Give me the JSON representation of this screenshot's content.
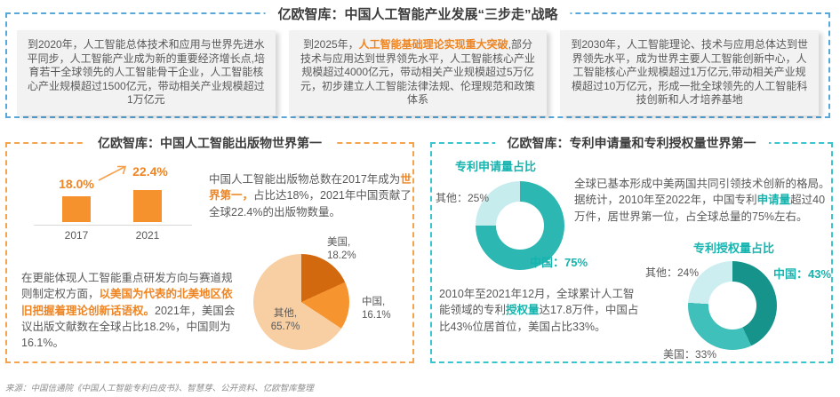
{
  "top_section": {
    "title": "亿欧智库：中国人工智能产业发展“三步走”战略",
    "boxes": [
      {
        "pre": "到2020年，人工智能总体技术和应用与世界先进水平同步，人工智能产业成为新的重要经济增长点,培育若干全球领先的人工智能骨干企业，人工智能核心产业规模超过1500亿元，带动相关产业规模超过1万亿元",
        "hl": "",
        "post": ""
      },
      {
        "pre": "到2025年，",
        "hl": "人工智能基础理论实现重大突破",
        "post": ",部分技术与应用达到世界领先水平，人工智能核心产业规模超过4000亿元，带动相关产业规模超过5万亿元，初步建立人工智能法律法规、伦理规范和政策体系"
      },
      {
        "pre": "到2030年，人工智能理论、技术与应用总体达到世界领先水平，成为世界主要人工智能创新中心，人工智能核心产业规模超过1万亿元,带动相关产业规模超过10万亿元，形成一批全球领先的人工智能科技创新和人才培养基地",
        "hl": "",
        "post": ""
      }
    ]
  },
  "left_section": {
    "title": "亿欧智库：中国人工智能出版物世界第一",
    "para1": {
      "pre": "中国人工智能出版物总数在2017年成为",
      "hl": "世界第一，",
      "post": "占比达18%，2021年中国贡献了全球22.4%的出版物数量。"
    },
    "para2": {
      "pre": "在更能体现人工智能重点研发方向与赛道规则制定权方面，",
      "hl": "以美国为代表的北美地区依旧把握着理论创新话语权。",
      "post": "2021年，美国会议出版文献数在全球占比18.2%，中国则为16.1%。"
    }
  },
  "right_section": {
    "title": "亿欧智库：专利申请量和专利授权量世界第一",
    "para1": {
      "pre": "全球已基本形成中美两国共同引领技术创新的格局。据统计，2010年至2022年，中国专利",
      "hl": "申请量",
      "post": "超过40万件，居世界第一位，占全球总量的75%左右。"
    },
    "para2": {
      "pre": "2010年至2021年12月，全球累计人工智能领域的专利",
      "hl": "授权量",
      "post": "达17.8万件，中国占比43%位居首位，美国占比33%。"
    }
  },
  "footer": {
    "source": "来源：中国信通院《中国人工智能专利白皮书》、智慧芽、公开资料、亿欧智库整理"
  },
  "colors": {
    "blue_dash": "#58A8DA",
    "orange_dash": "#F5A34C",
    "teal_dash": "#3AC4CE",
    "orange_accent": "#EF8522",
    "teal_accent": "#17B3AE"
  },
  "chart_data": [
    {
      "type": "bar",
      "title": "",
      "categories": [
        "2017",
        "2021"
      ],
      "values": [
        18.0,
        22.4
      ],
      "unit": "%",
      "value_labels": [
        "18.0%",
        "22.4%"
      ],
      "bar_color": "#F5922E",
      "annotation": "increase-arrow"
    },
    {
      "type": "pie",
      "title": "",
      "slices": [
        {
          "label": "美国",
          "value": 18.2,
          "color": "#D2690F",
          "label_text": "美国,\n18.2%"
        },
        {
          "label": "中国",
          "value": 16.1,
          "color": "#F6952F",
          "label_text": "中国,\n16.1%"
        },
        {
          "label": "其他",
          "value": 65.7,
          "color": "#F8CFA3",
          "label_text": "其他,\n65.7%"
        }
      ]
    },
    {
      "type": "pie",
      "donut": true,
      "title": "专利申请量占比",
      "slices": [
        {
          "label": "中国",
          "value": 75,
          "color": "#2CB7B3",
          "label_text": "中国：75%"
        },
        {
          "label": "其他",
          "value": 25,
          "color": "#C7ECEE",
          "label_text": "其他：25%"
        }
      ]
    },
    {
      "type": "pie",
      "donut": true,
      "title": "专利授权量占比",
      "slices": [
        {
          "label": "中国",
          "value": 43,
          "color": "#16948B",
          "label_text": "中国：43%"
        },
        {
          "label": "美国",
          "value": 33,
          "color": "#3FC0BA",
          "label_text": "美国：33%"
        },
        {
          "label": "其他",
          "value": 24,
          "color": "#CDEEF0",
          "label_text": "其他：24%"
        }
      ]
    }
  ]
}
